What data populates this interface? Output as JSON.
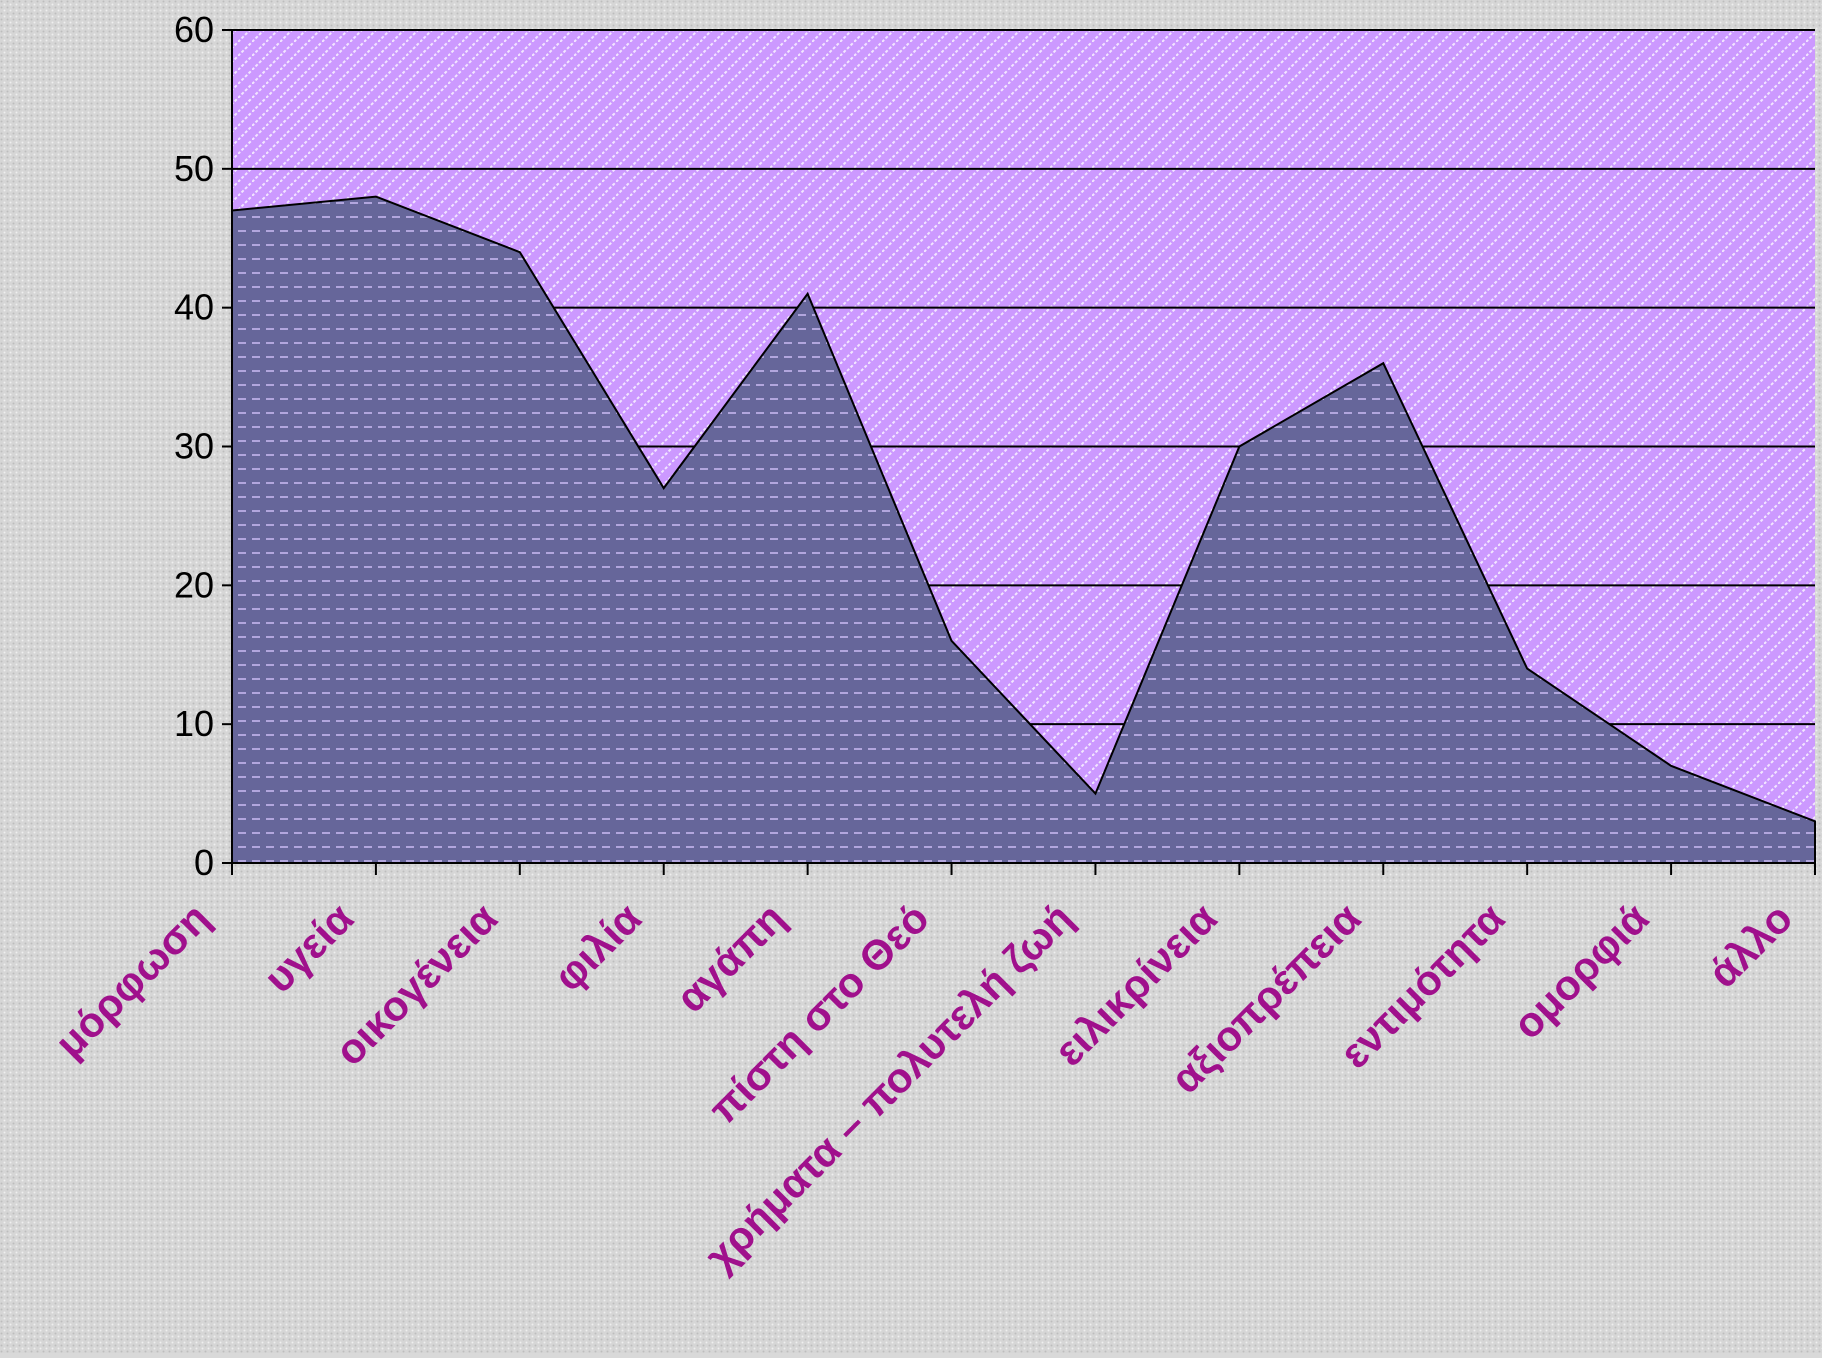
{
  "chart_data": {
    "type": "area",
    "title": "",
    "xlabel": "",
    "ylabel": "",
    "ylim": [
      0,
      60
    ],
    "yticks": [
      0,
      10,
      20,
      30,
      40,
      50,
      60
    ],
    "grid": true,
    "legend": "none",
    "categories": [
      "μόρφωση",
      "υγεία",
      "οικογένεια",
      "φιλία",
      "αγάπη",
      "πίστη στο Θεό",
      "χρήματα – πολυτελή ζωή",
      "ειλικρίνεια",
      "αξιοπρέπεια",
      "εντιμότητα",
      "ομορφιά",
      "άλλο"
    ],
    "series": [
      {
        "values": [
          47,
          48,
          44,
          27,
          41,
          16,
          5,
          30,
          36,
          14,
          7,
          3
        ]
      }
    ],
    "colors": {
      "page_background": "#d9d9d9",
      "plot_background": "#cc99ff",
      "area_fill": "#66669a",
      "gridline": "#000000",
      "category_label": "#a0108c"
    }
  }
}
